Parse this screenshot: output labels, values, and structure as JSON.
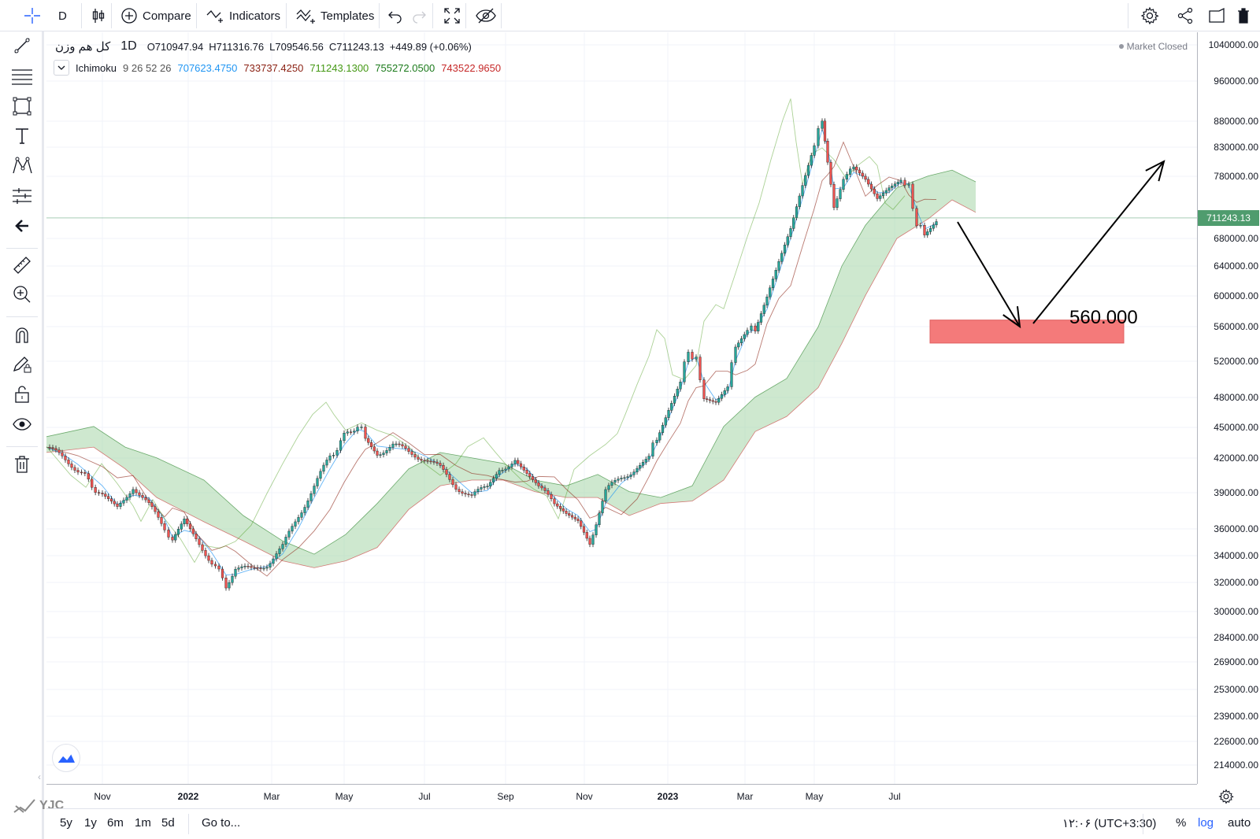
{
  "toolbar": {
    "interval": "D",
    "compare": "Compare",
    "indicators": "Indicators",
    "templates": "Templates"
  },
  "legend": {
    "symbol": "کل هم وزن",
    "timeframe": "1D",
    "open": "O710947.94",
    "high": "H711316.76",
    "low": "L709546.56",
    "close": "C711243.13",
    "change": "+449.89 (+0.06%)",
    "indicator_name": "Ichimoku",
    "indicator_params": "9 26 52 26",
    "conversion": "707623.4750",
    "base": "733737.4250",
    "lagging": "711243.1300",
    "span_a": "755272.0500",
    "span_b": "743522.9650",
    "market_status": "Market Closed"
  },
  "colors": {
    "up": "#26a69a",
    "down": "#ef5350",
    "conversion": "#2196f3",
    "base": "#8a1f11",
    "lagging": "#459915",
    "span_a": "#1b7a1b",
    "span_b": "#c62828",
    "cloud_bull": "#a5d6a7",
    "cloud_bear": "#f8bbbb",
    "target_zone": "#f47a7a",
    "last_price_tag": "#4f9c6e"
  },
  "price_axis": {
    "labels": [
      "1040000.00",
      "960000.00",
      "880000.00",
      "830000.00",
      "780000.00",
      "680000.00",
      "640000.00",
      "600000.00",
      "560000.00",
      "520000.00",
      "480000.00",
      "450000.00",
      "420000.00",
      "390000.00",
      "360000.00",
      "340000.00",
      "320000.00",
      "300000.00",
      "284000.00",
      "269000.00",
      "253000.00",
      "239000.00",
      "226000.00",
      "214000.00"
    ],
    "last_price": "711243.13"
  },
  "time_axis": {
    "labels": [
      "Nov",
      "2022",
      "Mar",
      "May",
      "Jul",
      "Sep",
      "Nov",
      "2023",
      "Mar",
      "May",
      "Jul"
    ]
  },
  "annotation": {
    "target_label": "560.000"
  },
  "bottombar": {
    "ranges": [
      "5y",
      "1y",
      "6m",
      "1m",
      "5d"
    ],
    "goto": "Go to...",
    "clock": "۱۲:۰۶ (UTC+3:30)",
    "percent": "%",
    "log": "log",
    "auto": "auto"
  },
  "watermark": "YJC",
  "chart_data": {
    "type": "candlestick",
    "title": "کل هم وزن",
    "scale": "log",
    "ylim": [
      214000,
      1040000
    ],
    "x": [
      "2021-09",
      "2021-11",
      "2022-01",
      "2022-03",
      "2022-05",
      "2022-07",
      "2022-09",
      "2022-11",
      "2023-01",
      "2023-03",
      "2023-05",
      "2023-07"
    ],
    "close": [
      425000,
      380000,
      330000,
      340000,
      450000,
      420000,
      410000,
      360000,
      500000,
      600000,
      780000,
      711243
    ],
    "projection_target": 560000,
    "grid": true
  }
}
